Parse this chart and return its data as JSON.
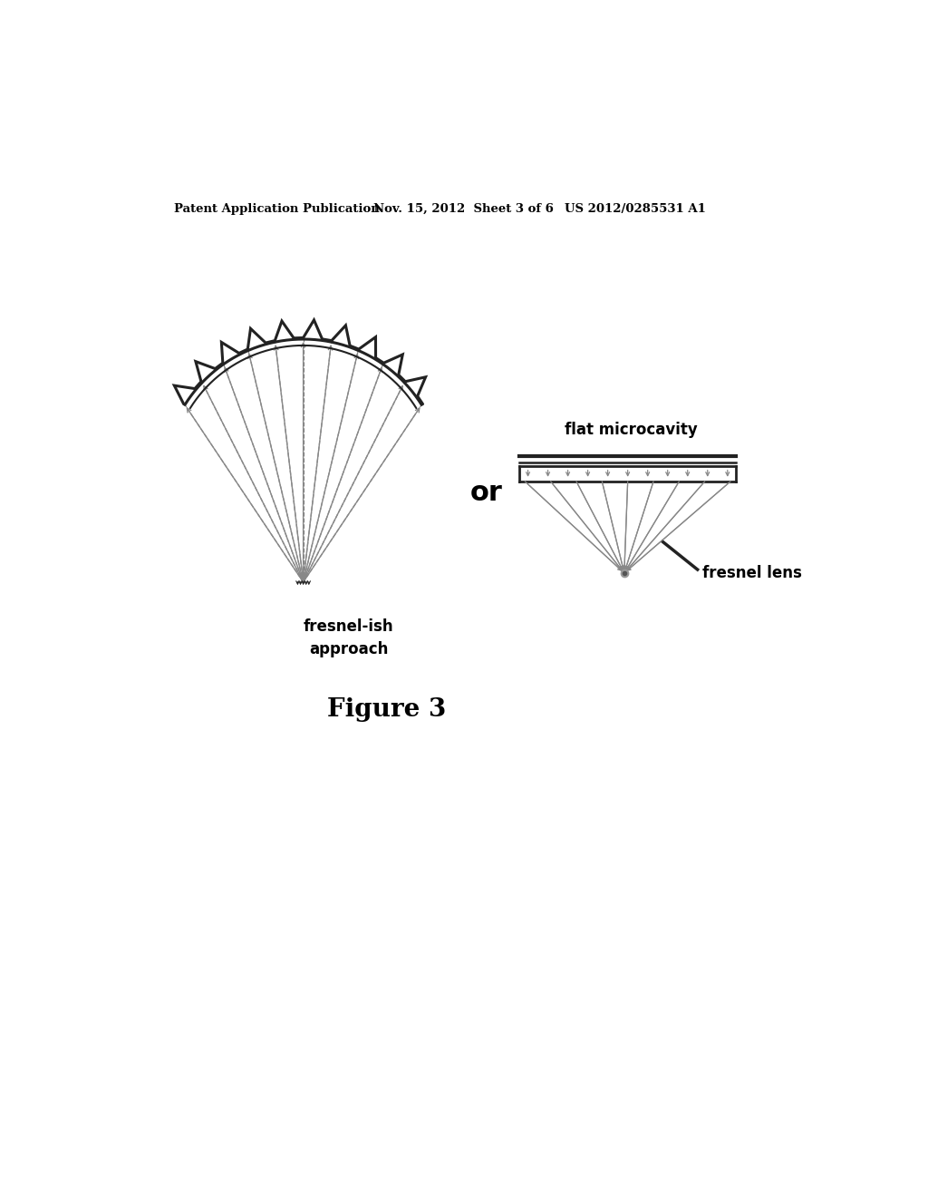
{
  "background_color": "#ffffff",
  "header_left": "Patent Application Publication",
  "header_center": "Nov. 15, 2012  Sheet 3 of 6",
  "header_right": "US 2012/0285531 A1",
  "figure_label": "Figure 3",
  "label_fresnel_approach": "fresnel-ish\napproach",
  "label_or": "or",
  "label_flat_microcavity": "flat microcavity",
  "label_fresnel_lens": "fresnel lens",
  "line_color": "#222222",
  "ray_color": "#888888"
}
